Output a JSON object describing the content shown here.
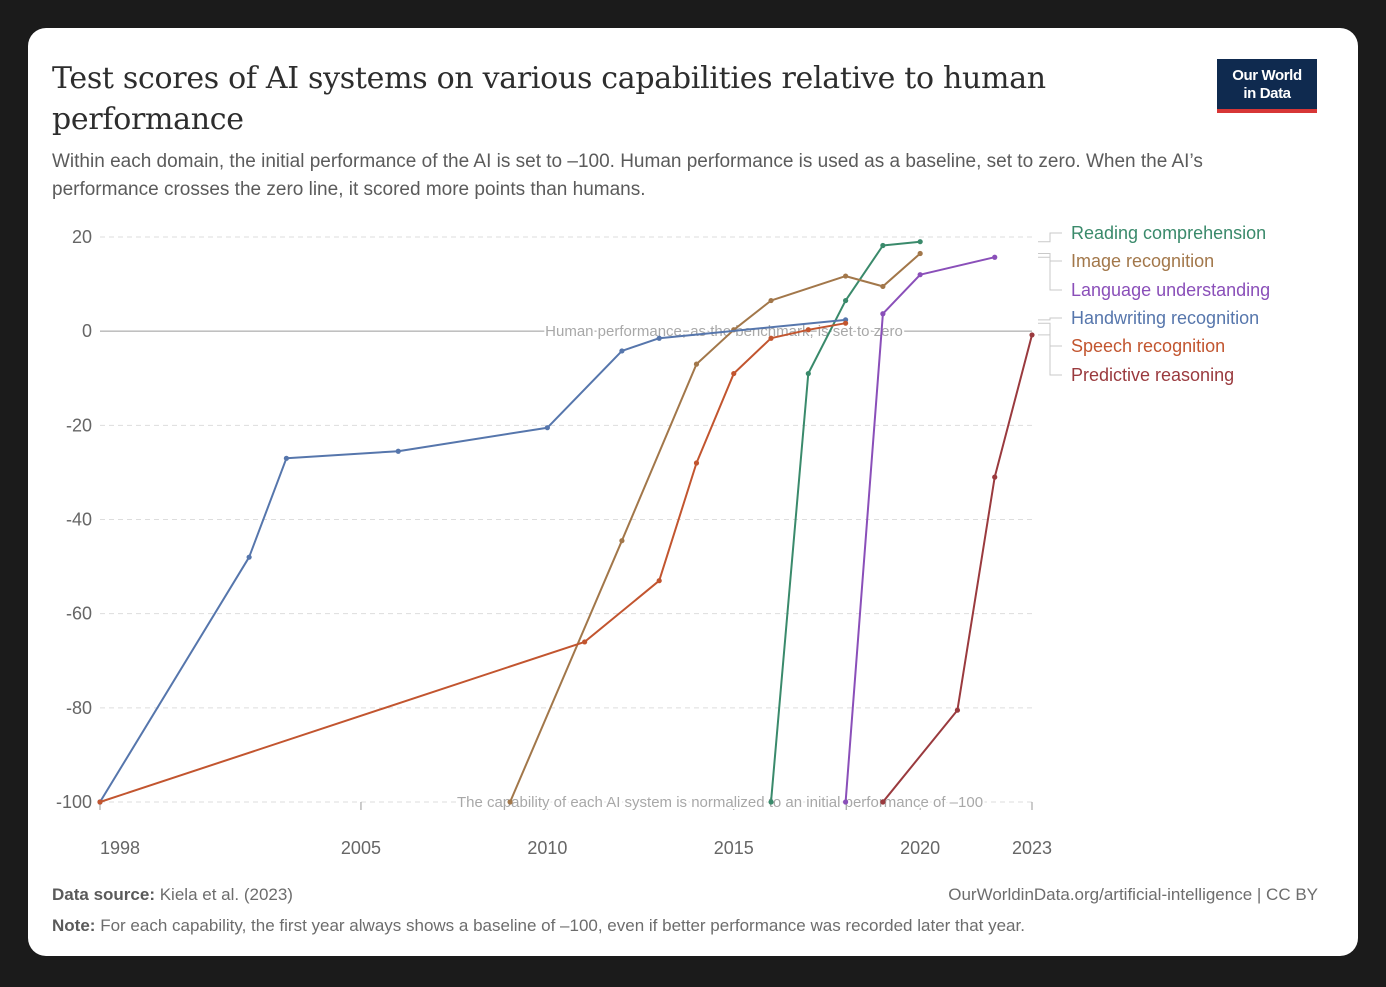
{
  "header": {
    "title": "Test scores of AI systems on various capabilities relative to human performance",
    "subtitle": "Within each domain, the initial performance of the AI is set to –100. Human performance is used as a baseline, set to zero. When the AI’s performance crosses the zero line, it scored more points than humans.",
    "logo_line1": "Our World",
    "logo_line2": "in Data"
  },
  "footer": {
    "source_label": "Data source:",
    "source_value": "Kiela et al. (2023)",
    "url": "OurWorldinData.org/artificial-intelligence | CC BY",
    "note_label": "Note:",
    "note_value": "For each capability, the first year always shows a baseline of –100, even if better performance was recorded later that year."
  },
  "colors": {
    "reading": "#3a8a6b",
    "image": "#a2774a",
    "language": "#8a4fb9",
    "handwriting": "#5676ac",
    "speech": "#c2552f",
    "predictive": "#9a3a3e",
    "grid": "#dddddd",
    "axis_text": "#666666"
  },
  "chart_data": {
    "type": "line",
    "title": "Test scores of AI systems on various capabilities relative to human performance",
    "xlabel": "",
    "ylabel": "",
    "xlim": [
      1998,
      2023
    ],
    "ylim": [
      -100,
      20
    ],
    "xticks": [
      1998,
      2005,
      2010,
      2015,
      2020,
      2023
    ],
    "yticks": [
      20,
      0,
      -20,
      -40,
      -60,
      -80,
      -100
    ],
    "grid": true,
    "legend": "right",
    "annotations": {
      "zero_line": "Human performance, as the benchmark, is set to zero",
      "baseline": "The capability of each AI system is normalized to an initial performance of –100"
    },
    "series": [
      {
        "name": "Reading comprehension",
        "color_key": "reading",
        "points": [
          [
            2016,
            -100
          ],
          [
            2017,
            -9
          ],
          [
            2018,
            6.5
          ],
          [
            2019,
            18.2
          ],
          [
            2020,
            19
          ]
        ]
      },
      {
        "name": "Image recognition",
        "color_key": "image",
        "points": [
          [
            2009,
            -100
          ],
          [
            2012,
            -44.5
          ],
          [
            2014,
            -7
          ],
          [
            2015,
            0.3
          ],
          [
            2016,
            6.5
          ],
          [
            2018,
            11.7
          ],
          [
            2019,
            9.5
          ],
          [
            2020,
            16.5
          ]
        ]
      },
      {
        "name": "Language understanding",
        "color_key": "language",
        "points": [
          [
            2018,
            -100
          ],
          [
            2019,
            3.7
          ],
          [
            2020,
            12
          ],
          [
            2022,
            15.7
          ]
        ]
      },
      {
        "name": "Handwriting recognition",
        "color_key": "handwriting",
        "points": [
          [
            1998,
            -100
          ],
          [
            2002,
            -48
          ],
          [
            2003,
            -27
          ],
          [
            2006,
            -25.5
          ],
          [
            2010,
            -20.5
          ],
          [
            2012,
            -4.2
          ],
          [
            2013,
            -1.5
          ],
          [
            2018,
            2.4
          ]
        ]
      },
      {
        "name": "Speech recognition",
        "color_key": "speech",
        "points": [
          [
            1998,
            -100
          ],
          [
            2011,
            -66
          ],
          [
            2013,
            -53
          ],
          [
            2014,
            -28
          ],
          [
            2015,
            -9
          ],
          [
            2016,
            -1.5
          ],
          [
            2017,
            0.3
          ],
          [
            2018,
            1.7
          ]
        ]
      },
      {
        "name": "Predictive reasoning",
        "color_key": "predictive",
        "points": [
          [
            2019,
            -100
          ],
          [
            2021,
            -80.5
          ],
          [
            2022,
            -31
          ],
          [
            2023,
            -0.8
          ]
        ]
      }
    ]
  }
}
